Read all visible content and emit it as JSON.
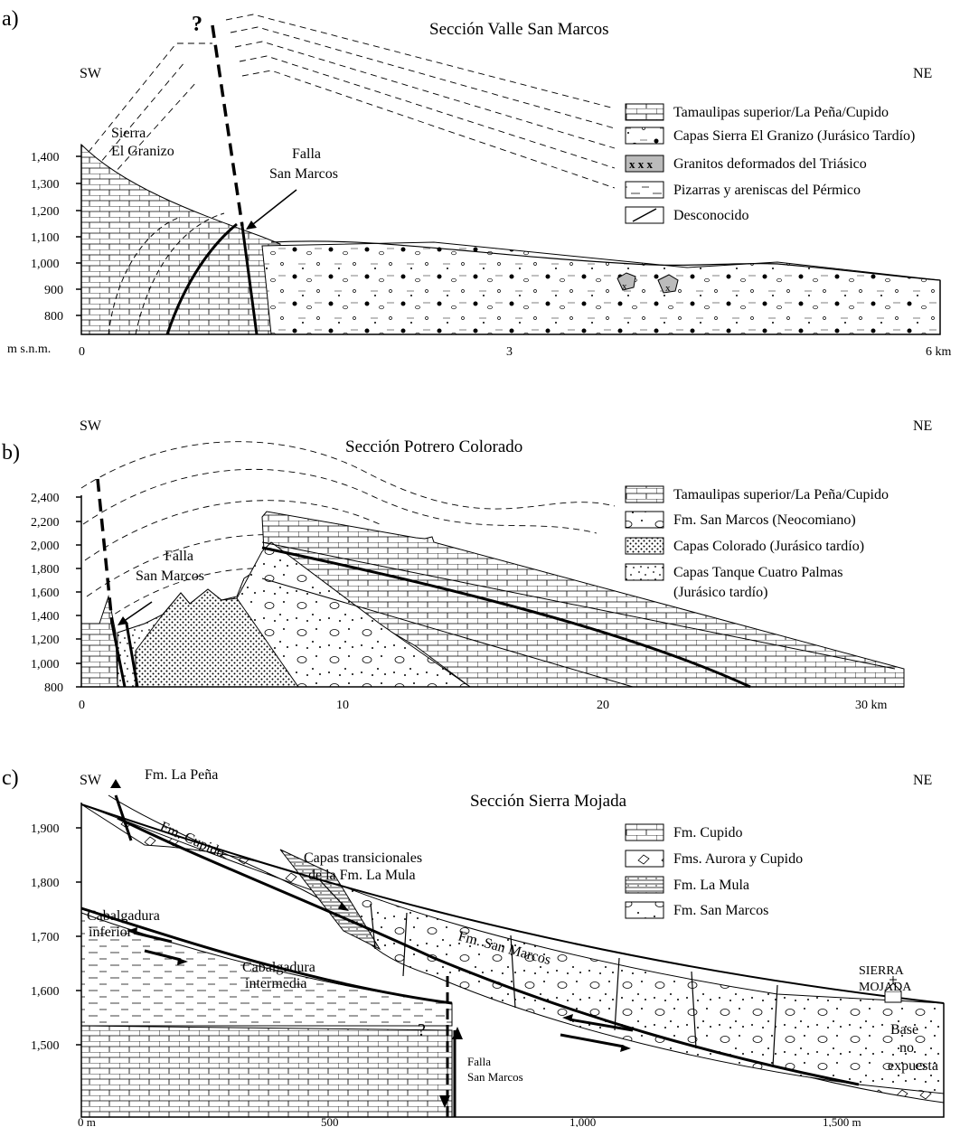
{
  "panel_a": {
    "letter": "a)",
    "title": "Sección Valle San Marcos",
    "sw": "SW",
    "ne": "NE",
    "question_mark": "?",
    "y_ticks": [
      "1,400",
      "1,300",
      "1,200",
      "1,100",
      "1,000",
      "900",
      "800"
    ],
    "y_unit": "m s.n.m.",
    "x_ticks": [
      "0",
      "3",
      "6 km"
    ],
    "sierra_label_1": "Sierra",
    "sierra_label_2": "El Granizo",
    "fault_label_1": "Falla",
    "fault_label_2": "San Marcos",
    "legend": [
      "Tamaulipas superior/La Peña/Cupido",
      "Capas Sierra El Granizo (Jurásico Tardío)",
      "Granitos deformados del Triásico",
      "Pizarras y areniscas del Pérmico",
      "Desconocido"
    ]
  },
  "panel_b": {
    "letter": "b)",
    "title": "Sección Potrero Colorado",
    "sw": "SW",
    "ne": "NE",
    "y_ticks": [
      "2,400",
      "2,200",
      "2,000",
      "1,800",
      "1,600",
      "1,400",
      "1,200",
      "1,000",
      "800"
    ],
    "x_ticks": [
      "0",
      "10",
      "20",
      "30 km"
    ],
    "fault_label_1": "Falla",
    "fault_label_2": "San Marcos",
    "legend": [
      "Tamaulipas superior/La Peña/Cupido",
      "Fm. San Marcos (Neocomiano)",
      "Capas Colorado (Jurásico tardío)",
      "Capas Tanque Cuatro Palmas",
      "(Jurásico tardío)"
    ]
  },
  "panel_c": {
    "letter": "c)",
    "title": "Sección Sierra Mojada",
    "sw": "SW",
    "ne": "NE",
    "y_ticks": [
      "1,900",
      "1,800",
      "1,700",
      "1,600",
      "1,500"
    ],
    "x_ticks": [
      "0 m",
      "500",
      "1,000",
      "1,500 m"
    ],
    "fm_la_pena": "Fm. La Peña",
    "fm_cupido": "Fm. Cupido",
    "fm_san_marcos": "Fm. San Marcos",
    "capas_1": "Capas transicionales",
    "capas_2": "de la Fm. La Mula",
    "cab_inf_1": "Cabalgadura",
    "cab_inf_2": "inferior",
    "cab_int_1": "Cabalgadura",
    "cab_int_2": "intermedia",
    "falla_1": "Falla",
    "falla_2": "San Marcos",
    "question_mark": "?",
    "sierra_1": "SIERRA",
    "sierra_2": "MOJADA",
    "base_1": "Base",
    "base_2": "no",
    "base_3": "expuesta",
    "legend": [
      "Fm. Cupido",
      "Fms. Aurora y Cupido",
      "Fm. La Mula",
      "Fm. San Marcos"
    ]
  }
}
